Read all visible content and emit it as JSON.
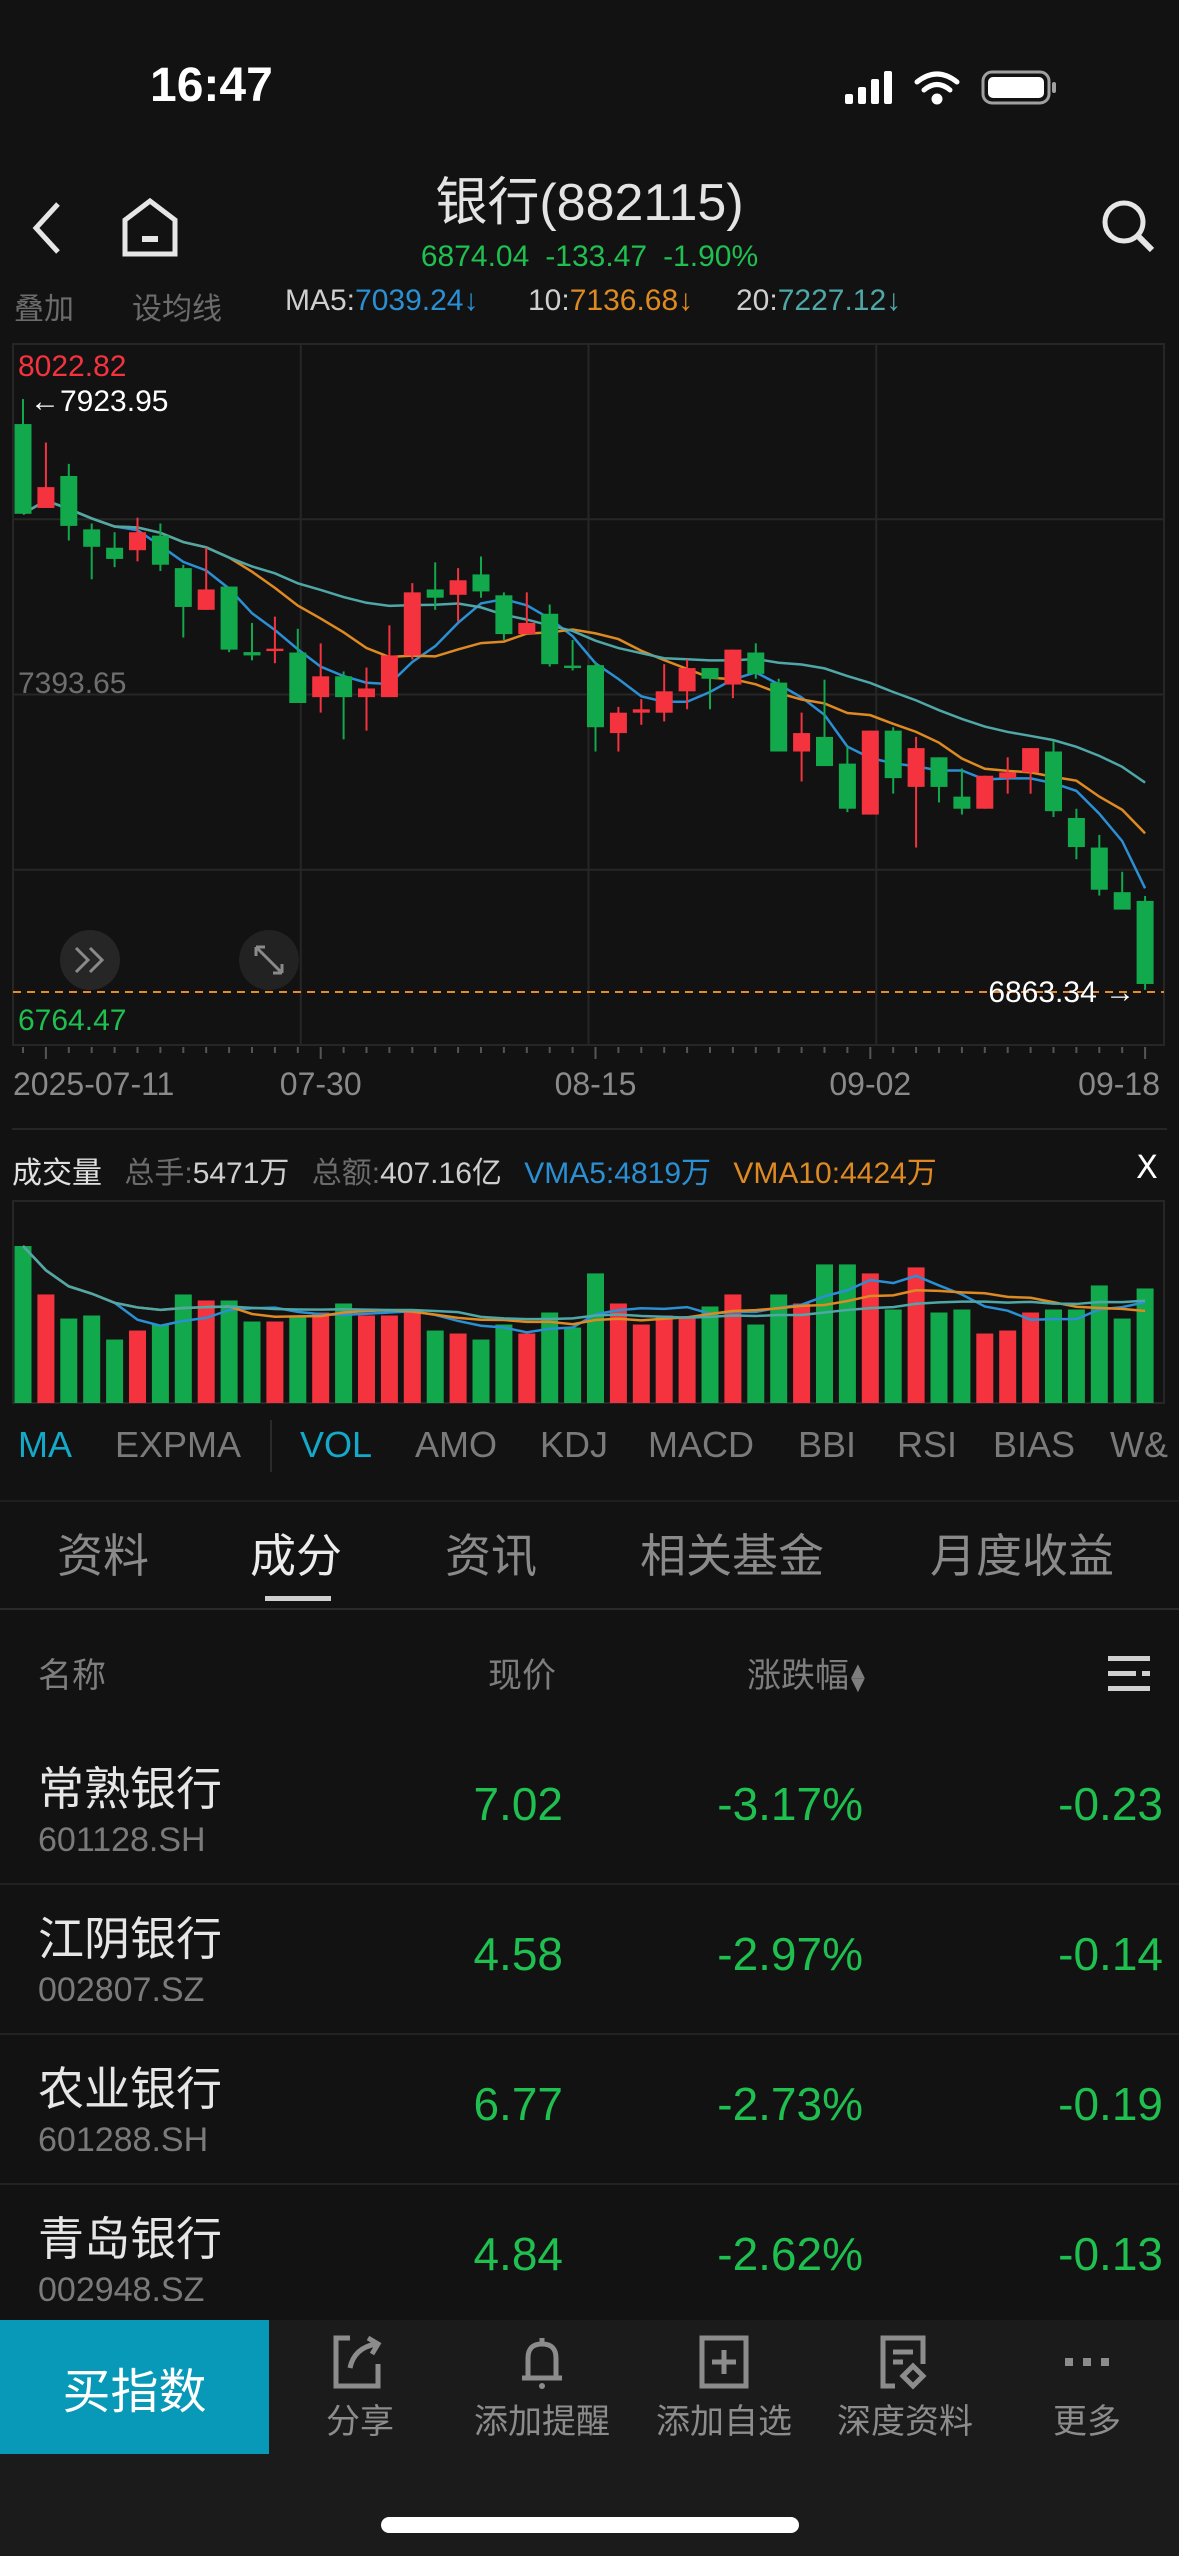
{
  "status_bar": {
    "time": "16:47"
  },
  "header": {
    "title": "银行(882115)",
    "quote": {
      "price": "6874.04",
      "change": "-133.47",
      "change_pct": "-1.90%"
    },
    "icons": [
      "back-icon",
      "home-icon",
      "search-icon"
    ]
  },
  "ma_legend": {
    "overlay": "叠加",
    "set_ma": "设均线",
    "ma5_label": "MA5:",
    "ma5_value": "7039.24↓",
    "ma10_label": "10:",
    "ma10_value": "7136.68↓",
    "ma20_label": "20:",
    "ma20_value": "7227.12↓"
  },
  "colors": {
    "up": "#f5333f",
    "down": "#12a84c",
    "ma5": "#2b8fd4",
    "ma10": "#de8a22",
    "ma20": "#4fa7a7",
    "accent": "#0799b7"
  },
  "chart_data": [
    {
      "type": "candlestick",
      "ylim": [
        6764.47,
        8022.82
      ],
      "y_labels": {
        "top": "8022.82",
        "mid": "7393.65",
        "bottom": "6764.47"
      },
      "max_marker": "7923.95",
      "min_marker": "6863.34",
      "x_labels": [
        {
          "index": 0,
          "label": "2025-07-11"
        },
        {
          "index": 13,
          "label": "07-30"
        },
        {
          "index": 25,
          "label": "08-15"
        },
        {
          "index": 37,
          "label": "09-02"
        },
        {
          "index": 49,
          "label": "09-18"
        }
      ],
      "grid": true,
      "ohlc": [
        [
          7879.1,
          7923.95,
          7718.0,
          7718.0
        ],
        [
          7728.5,
          7846.0,
          7728.5,
          7765.9
        ],
        [
          7785.9,
          7807.7,
          7670.1,
          7696.3
        ],
        [
          7690.1,
          7700.6,
          7600.5,
          7658.8
        ],
        [
          7657.1,
          7684.9,
          7622.2,
          7637.0
        ],
        [
          7652.7,
          7711.0,
          7632.7,
          7684.9
        ],
        [
          7678.8,
          7700.6,
          7615.3,
          7626.6
        ],
        [
          7620.5,
          7626.6,
          7496.0,
          7550.8
        ],
        [
          7545.6,
          7657.1,
          7545.6,
          7582.2
        ],
        [
          7587.4,
          7587.4,
          7469.8,
          7474.2
        ],
        [
          7469.8,
          7522.1,
          7455.0,
          7463.8
        ],
        [
          7471.6,
          7533.4,
          7449.8,
          7475.9
        ],
        [
          7469.0,
          7511.6,
          7378.4,
          7378.4
        ],
        [
          7388.9,
          7485.5,
          7361.0,
          7426.3
        ],
        [
          7426.3,
          7435.0,
          7313.1,
          7388.9
        ],
        [
          7388.9,
          7442.0,
          7328.8,
          7404.5
        ],
        [
          7388.9,
          7517.7,
          7388.9,
          7463.8
        ],
        [
          7463.8,
          7593.5,
          7456.8,
          7577.0
        ],
        [
          7582.2,
          7630.9,
          7545.6,
          7567.4
        ],
        [
          7572.6,
          7620.5,
          7524.7,
          7598.7
        ],
        [
          7609.2,
          7641.4,
          7567.4,
          7578.7
        ],
        [
          7571.7,
          7577.0,
          7491.6,
          7502.1
        ],
        [
          7502.1,
          7577.0,
          7502.1,
          7522.1
        ],
        [
          7538.6,
          7555.2,
          7443.7,
          7448.1
        ],
        [
          7445.5,
          7491.6,
          7436.8,
          7441.1
        ],
        [
          7446.3,
          7452.4,
          7291.3,
          7334.9
        ],
        [
          7324.4,
          7371.4,
          7291.3,
          7361.0
        ],
        [
          7361.0,
          7385.4,
          7339.2,
          7367.1
        ],
        [
          7361.0,
          7448.1,
          7345.3,
          7399.3
        ],
        [
          7399.3,
          7456.8,
          7367.1,
          7441.1
        ],
        [
          7441.1,
          7441.1,
          7367.1,
          7421.9
        ],
        [
          7411.5,
          7474.2,
          7387.1,
          7474.2
        ],
        [
          7469.0,
          7485.5,
          7421.9,
          7430.7
        ],
        [
          7415.0,
          7421.9,
          7291.3,
          7291.3
        ],
        [
          7291.3,
          7361.0,
          7237.4,
          7324.4
        ],
        [
          7317.5,
          7420.2,
          7265.2,
          7265.2
        ],
        [
          7269.6,
          7300.0,
          7182.5,
          7188.6
        ],
        [
          7178.1,
          7328.8,
          7178.1,
          7328.8
        ],
        [
          7328.8,
          7334.9,
          7215.6,
          7243.5
        ],
        [
          7227.8,
          7317.5,
          7119.0,
          7297.4
        ],
        [
          7280.9,
          7280.9,
          7199.9,
          7227.8
        ],
        [
          7210.3,
          7260.8,
          7178.1,
          7188.6
        ],
        [
          7188.6,
          7247.8,
          7188.6,
          7247.8
        ],
        [
          7243.5,
          7280.9,
          7215.6,
          7253.9
        ],
        [
          7253.9,
          7297.4,
          7215.6,
          7297.4
        ],
        [
          7291.3,
          7310.5,
          7173.8,
          7184.2
        ],
        [
          7172.0,
          7188.6,
          7098.0,
          7119.8
        ],
        [
          7118.9,
          7141.6,
          7032.7,
          7043.2
        ],
        [
          7038.8,
          7075.4,
          7011.0,
          7007.51
        ],
        [
          7023.1,
          7031.9,
          6863.34,
          6874.04
        ]
      ],
      "ohlc_order": [
        "open",
        "high",
        "low",
        "close"
      ],
      "series": [
        {
          "name": "MA5"
        },
        {
          "name": "10"
        },
        {
          "name": "20"
        }
      ]
    },
    {
      "type": "bar",
      "unit": "万",
      "ylim": [
        0,
        9600
      ],
      "values": [
        7497,
        5184,
        4035,
        4179,
        3031,
        3461,
        3748,
        5184,
        4897,
        4897,
        3892,
        3892,
        4179,
        4322,
        4753,
        4179,
        4179,
        4466,
        3461,
        3318,
        3031,
        3748,
        3318,
        4322,
        3605,
        6189,
        4753,
        3748,
        4179,
        4035,
        4610,
        5184,
        3748,
        5184,
        4753,
        6619,
        6619,
        6189,
        4466,
        6476,
        4322,
        4466,
        3318,
        3461,
        4322,
        4466,
        4466,
        5614,
        4035,
        5471
      ],
      "series": [
        {
          "name": "VMA5"
        },
        {
          "name": "VMA10"
        }
      ]
    }
  ],
  "volume_legend": {
    "title": "成交量",
    "total_hands_label": "总手:",
    "total_hands": "5471万",
    "total_amount_label": "总额:",
    "total_amount": "407.16亿",
    "vma5": "VMA5:4819万",
    "vma10": "VMA10:4424万",
    "close": "X"
  },
  "indicator_tabs": {
    "items": [
      "MA",
      "EXPMA",
      "VOL",
      "AMO",
      "KDJ",
      "MACD",
      "BBI",
      "RSI",
      "BIAS",
      "W&"
    ],
    "active": [
      "MA",
      "VOL"
    ]
  },
  "tabs": {
    "items": [
      "资料",
      "成分",
      "资讯",
      "相关基金",
      "月度收益"
    ],
    "active": "成分"
  },
  "list": {
    "headers": {
      "name": "名称",
      "price": "现价",
      "change_pct": "涨跌幅"
    },
    "rows": [
      {
        "name": "常熟银行",
        "code": "601128.SH",
        "price": "7.02",
        "change_pct": "-3.17%",
        "change": "-0.23"
      },
      {
        "name": "江阴银行",
        "code": "002807.SZ",
        "price": "4.58",
        "change_pct": "-2.97%",
        "change": "-0.14"
      },
      {
        "name": "农业银行",
        "code": "601288.SH",
        "price": "6.77",
        "change_pct": "-2.73%",
        "change": "-0.19"
      },
      {
        "name": "青岛银行",
        "code": "002948.SZ",
        "price": "4.84",
        "change_pct": "-2.62%",
        "change": "-0.13"
      }
    ]
  },
  "bottom_bar": {
    "buy": "买指数",
    "actions": [
      {
        "label": "分享",
        "icon": "share-icon"
      },
      {
        "label": "添加提醒",
        "icon": "bell-icon"
      },
      {
        "label": "添加自选",
        "icon": "add-watchlist-icon"
      },
      {
        "label": "深度资料",
        "icon": "report-icon"
      },
      {
        "label": "更多",
        "icon": "more-icon"
      }
    ]
  }
}
